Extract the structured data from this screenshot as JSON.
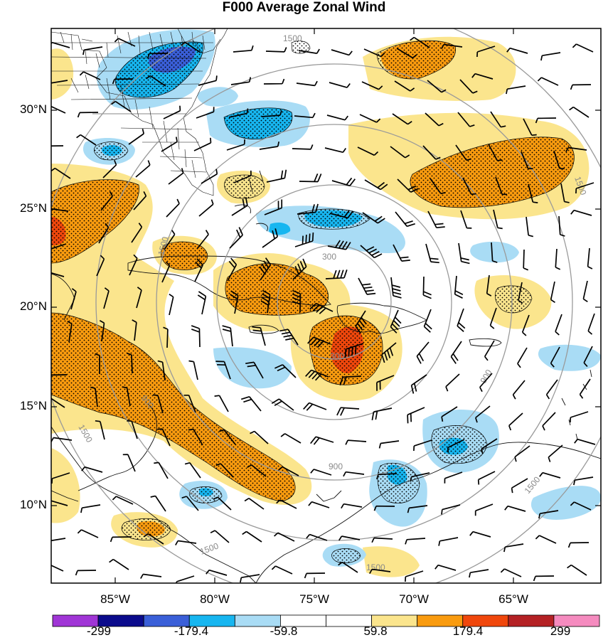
{
  "title": "F000 Average Zonal Wind",
  "latitude_labels": [
    "30°N",
    "25°N",
    "20°N",
    "15°N",
    "10°N"
  ],
  "longitude_labels": [
    "85°W",
    "80°W",
    "75°W",
    "70°W",
    "65°W"
  ],
  "colorbar": {
    "tick_labels": [
      "-299",
      "-179.4",
      "-59.8",
      "59.8",
      "179.4",
      "299"
    ],
    "colors": [
      "#a035d6",
      "#0b0b8c",
      "#3a5fd8",
      "#17b6f0",
      "#a9dcf5",
      "#ffffff",
      "#ffffff",
      "#fbe58d",
      "#f99b0f",
      "#f0470c",
      "#b42124",
      "#f58bbf"
    ]
  },
  "range_ring_labels": [
    "300",
    "300",
    "900",
    "900",
    "900",
    "1500",
    "1500",
    "1500",
    "1500",
    "1500",
    "1500",
    "1500"
  ],
  "colors": {
    "light_orange": "#fbe58d",
    "orange": "#f99b0f",
    "red_orange": "#f0470c",
    "light_blue": "#a9dcf5",
    "blue": "#17b6f0",
    "dark_blue": "#3a5fd8",
    "navy": "#0b0b8c",
    "ring": "#9a9a9a"
  }
}
